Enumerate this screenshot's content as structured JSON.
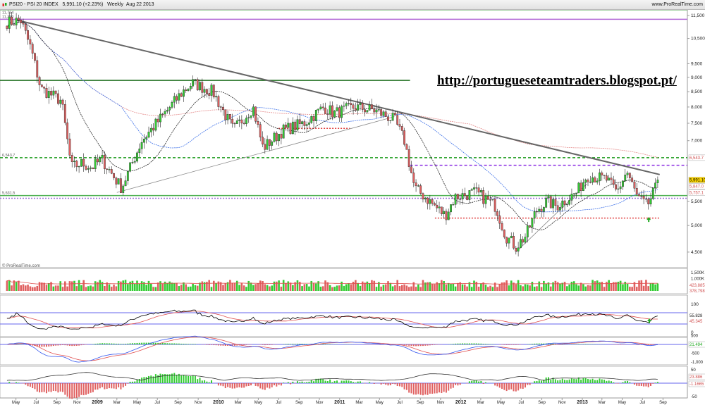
{
  "header": {
    "symbol": "PSI20 - PSI 20 INDEX",
    "last": "5,991.10 (+2.23%)",
    "period": "Weekly",
    "date": "Aug 22 2013",
    "site": "www.ProRealTime.com"
  },
  "watermark": "© ProRealTime.com",
  "annotation_url": "http://portugueseteamtraders.blogspot.pt/",
  "colors": {
    "up": "#33cc33",
    "down": "#e06060",
    "level_green": "#2e8b2e",
    "level_purple": "#b36ad6",
    "trend": "#666666",
    "axis_bg": "#ffffff"
  },
  "chart_data": [
    {
      "type": "candlestick",
      "panel": "price",
      "scale": "log",
      "ylim": [
        4200,
        12200
      ],
      "y_ticks": [
        "11,500",
        "10,500",
        "9,500",
        "9,000",
        "8,500",
        "8,000",
        "7,500",
        "7,000",
        "5,500",
        "5,000",
        "4,500"
      ],
      "y_tick_values": [
        11500,
        10500,
        9500,
        9000,
        8500,
        8000,
        7500,
        7000,
        5500,
        5000,
        4500
      ],
      "x_ticks": [
        {
          "label": "May",
          "date": "2008-05-01"
        },
        {
          "label": "Jul",
          "date": "2008-07-01"
        },
        {
          "label": "Sep",
          "date": "2008-09-01"
        },
        {
          "label": "Nov",
          "date": "2008-11-01"
        },
        {
          "label": "2009",
          "date": "2009-01-01"
        },
        {
          "label": "Mar",
          "date": "2009-03-01"
        },
        {
          "label": "May",
          "date": "2009-05-01"
        },
        {
          "label": "Jul",
          "date": "2009-07-01"
        },
        {
          "label": "Sep",
          "date": "2009-09-01"
        },
        {
          "label": "Nov",
          "date": "2009-11-01"
        },
        {
          "label": "2010",
          "date": "2010-01-01"
        },
        {
          "label": "Mar",
          "date": "2010-03-01"
        },
        {
          "label": "May",
          "date": "2010-05-01"
        },
        {
          "label": "Jul",
          "date": "2010-07-01"
        },
        {
          "label": "Sep",
          "date": "2010-09-01"
        },
        {
          "label": "Nov",
          "date": "2010-11-01"
        },
        {
          "label": "2011",
          "date": "2011-01-01"
        },
        {
          "label": "Mar",
          "date": "2011-03-01"
        },
        {
          "label": "May",
          "date": "2011-05-01"
        },
        {
          "label": "Jul",
          "date": "2011-07-01"
        },
        {
          "label": "Sep",
          "date": "2011-09-01"
        },
        {
          "label": "Nov",
          "date": "2011-11-01"
        },
        {
          "label": "2012",
          "date": "2012-01-01"
        },
        {
          "label": "Mar",
          "date": "2012-03-01"
        },
        {
          "label": "May",
          "date": "2012-05-01"
        },
        {
          "label": "Jul",
          "date": "2012-07-01"
        },
        {
          "label": "Sep",
          "date": "2012-09-01"
        },
        {
          "label": "Nov",
          "date": "2012-11-01"
        },
        {
          "label": "2013",
          "date": "2013-01-01"
        },
        {
          "label": "Mar",
          "date": "2013-03-01"
        },
        {
          "label": "May",
          "date": "2013-05-01"
        },
        {
          "label": "Jul",
          "date": "2013-07-01"
        },
        {
          "label": "Sep",
          "date": "2013-09-01"
        }
      ],
      "closes": [
        [
          "2008-04",
          11200
        ],
        [
          "2008-05",
          11300
        ],
        [
          "2008-06",
          10100
        ],
        [
          "2008-07",
          8600
        ],
        [
          "2008-09",
          8200
        ],
        [
          "2008-10",
          6300
        ],
        [
          "2008-11",
          6400
        ],
        [
          "2008-12",
          6300
        ],
        [
          "2009-01",
          6500
        ],
        [
          "2009-03",
          5800
        ],
        [
          "2009-05",
          7000
        ],
        [
          "2009-07",
          7700
        ],
        [
          "2009-09",
          8500
        ],
        [
          "2009-10",
          8800
        ],
        [
          "2009-12",
          8500
        ],
        [
          "2010-02",
          7300
        ],
        [
          "2010-04",
          8000
        ],
        [
          "2010-05",
          6800
        ],
        [
          "2010-07",
          7300
        ],
        [
          "2010-09",
          7500
        ],
        [
          "2010-11",
          8000
        ],
        [
          "2010-12",
          7800
        ],
        [
          "2011-02",
          8000
        ],
        [
          "2011-04",
          7900
        ],
        [
          "2011-06",
          7600
        ],
        [
          "2011-07",
          7000
        ],
        [
          "2011-08",
          5800
        ],
        [
          "2011-09",
          5600
        ],
        [
          "2011-11",
          5200
        ],
        [
          "2011-12",
          5600
        ],
        [
          "2012-02",
          5700
        ],
        [
          "2012-04",
          5400
        ],
        [
          "2012-05",
          4800
        ],
        [
          "2012-06",
          4600
        ],
        [
          "2012-07",
          4800
        ],
        [
          "2012-08",
          5300
        ],
        [
          "2012-09",
          5500
        ],
        [
          "2012-10",
          5400
        ],
        [
          "2012-12",
          5700
        ],
        [
          "2013-01",
          6100
        ],
        [
          "2013-03",
          6000
        ],
        [
          "2013-04",
          5700
        ],
        [
          "2013-05",
          6200
        ],
        [
          "2013-06",
          5600
        ],
        [
          "2013-07",
          5400
        ],
        [
          "2013-08",
          5991.1
        ]
      ],
      "levels": [
        {
          "price": 11764,
          "label": "11,764",
          "color": "#66b366",
          "style": "solid"
        },
        {
          "price": 11330,
          "label": "11,330",
          "color": "#b36ad6",
          "style": "solid"
        },
        {
          "price": 8890,
          "color": "#1e6e1e",
          "style": "solid",
          "until": "2011-08-01"
        },
        {
          "price": 6543.7,
          "label": "6,543.7",
          "color": "#1a9a1a",
          "style": "dashed"
        },
        {
          "price": 6350,
          "color": "#8a2be2",
          "style": "dashed",
          "from": "2011-08-01"
        },
        {
          "price": 5631.5,
          "label": "5,631.5",
          "color": "#4caf50",
          "style": "solid"
        },
        {
          "price": 5570,
          "color": "#9b6ad6",
          "style": "dotted"
        },
        {
          "price": 7350,
          "color": "#e04040",
          "style": "dotted",
          "from": "2010-07-01",
          "until": "2011-02-01"
        },
        {
          "price": 5150,
          "color": "#e04040",
          "style": "dotted",
          "from": "2011-10-15",
          "until": "2013-08-22"
        }
      ],
      "price_labels": [
        {
          "value": "5,991.10",
          "price": 5991.1,
          "bg": "#ffd700"
        },
        {
          "value": "5,847.0",
          "price": 5847,
          "bg": "#ffffff"
        },
        {
          "value": "5,757.1",
          "price": 5757.1,
          "bg": "#ffffff"
        },
        {
          "value": "6,543.7",
          "price": 6543.7,
          "bg": "#ffffff"
        }
      ],
      "trendlines": [
        {
          "from": [
            "2008-05-01",
            11300
          ],
          "to": [
            "2013-08-22",
            6120
          ],
          "color": "#666666"
        },
        {
          "from": [
            "2009-03-01",
            5700
          ],
          "to": [
            "2011-06-15",
            7700
          ],
          "color": "#888888"
        },
        {
          "from": [
            "2012-06-15",
            4500
          ],
          "to": [
            "2013-01-15",
            5900
          ],
          "color": "#888888"
        }
      ],
      "arrows": [
        {
          "date": "2013-07-20",
          "price": 5100,
          "color": "#22aa22"
        }
      ]
    },
    {
      "type": "bar",
      "panel": "volume",
      "y_ticks": [
        "1,500K",
        "1,000K"
      ],
      "last_values": [
        "423,885",
        "378,798"
      ]
    },
    {
      "type": "line",
      "panel": "rsi",
      "y_ticks": [
        "100",
        "0"
      ],
      "last_values": [
        "55.828",
        "45.345"
      ],
      "bands": [
        70,
        30
      ]
    },
    {
      "type": "line",
      "panel": "macd",
      "y_ticks": [
        "500",
        "-500",
        "-1,000"
      ],
      "last_values": [
        "21.494"
      ]
    },
    {
      "type": "bar",
      "panel": "oscillator",
      "y_ticks": [
        "50",
        "-50"
      ],
      "last_values": [
        "23.886",
        "-1.1665"
      ]
    }
  ]
}
